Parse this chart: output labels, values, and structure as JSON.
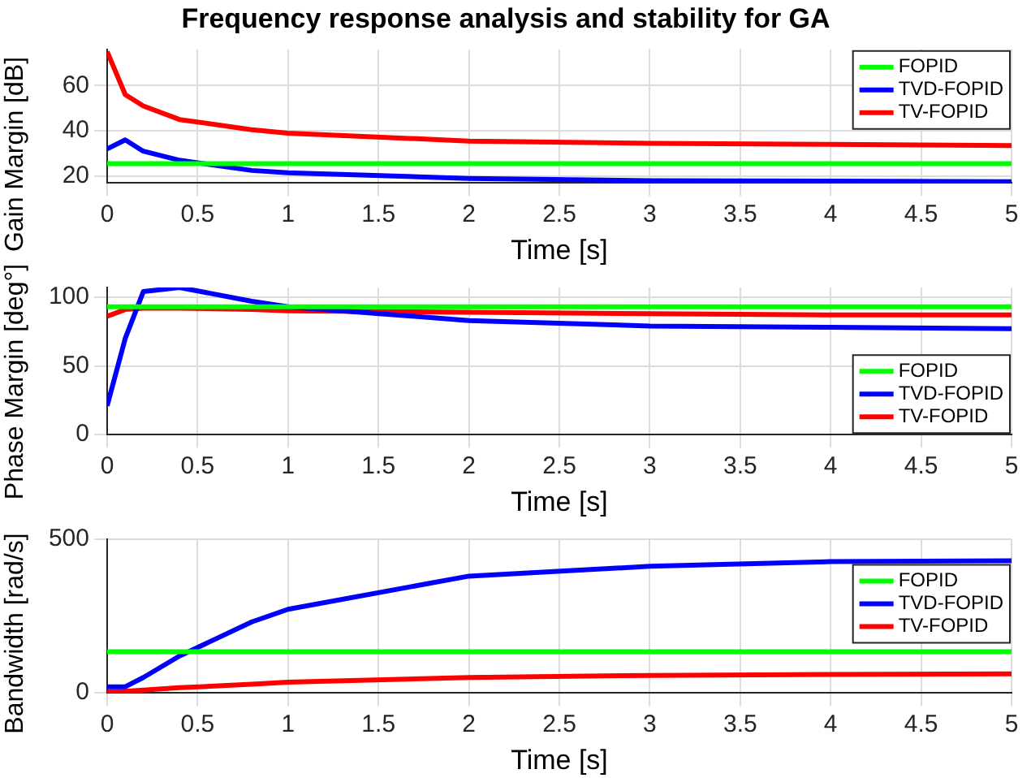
{
  "chart_data": [
    {
      "type": "line",
      "title": "Frequency response analysis and stability for GA",
      "xlabel": "Time [s]",
      "ylabel": "Gain Margin [dB]",
      "x": [
        0,
        0.1,
        0.2,
        0.4,
        0.8,
        1,
        2,
        3,
        4,
        5
      ],
      "xlim": [
        0,
        5
      ],
      "xticks": [
        0,
        0.5,
        1,
        1.5,
        2,
        2.5,
        3,
        3.5,
        4,
        4.5,
        5
      ],
      "ylim": [
        17,
        76
      ],
      "yticks": [
        20,
        40,
        60
      ],
      "grid": true,
      "legend": "top right",
      "series": [
        {
          "name": "FOPID",
          "color": "#00ff00",
          "values": [
            25.5,
            25.5,
            25.5,
            25.5,
            25.5,
            25.5,
            25.5,
            25.5,
            25.5,
            25.5
          ]
        },
        {
          "name": "TVD-FOPID",
          "color": "#0000ff",
          "values": [
            32,
            36,
            31,
            27,
            22.5,
            21.5,
            19,
            18,
            17.8,
            17.5
          ]
        },
        {
          "name": "TV-FOPID",
          "color": "#ff0000",
          "values": [
            75,
            56,
            51,
            45,
            40.5,
            39,
            35.5,
            34.5,
            34,
            33.5
          ]
        }
      ]
    },
    {
      "type": "line",
      "xlabel": "Time [s]",
      "ylabel": "Phase Margin [deg°]",
      "x": [
        0,
        0.1,
        0.2,
        0.4,
        0.8,
        1,
        2,
        3,
        4,
        5
      ],
      "xlim": [
        0,
        5
      ],
      "xticks": [
        0,
        0.5,
        1,
        1.5,
        2,
        2.5,
        3,
        3.5,
        4,
        4.5,
        5
      ],
      "ylim": [
        0,
        107
      ],
      "yticks": [
        0,
        50,
        100
      ],
      "grid": true,
      "legend": "bottom right",
      "series": [
        {
          "name": "FOPID",
          "color": "#00ff00",
          "values": [
            93,
            93,
            93,
            93,
            93,
            93,
            93,
            93,
            93,
            93
          ]
        },
        {
          "name": "TVD-FOPID",
          "color": "#0000ff",
          "values": [
            21,
            70,
            104,
            107,
            97,
            93,
            83,
            79,
            78,
            77
          ]
        },
        {
          "name": "TV-FOPID",
          "color": "#ff0000",
          "values": [
            86,
            91,
            92,
            92,
            91,
            90,
            89,
            88,
            87,
            87
          ]
        }
      ]
    },
    {
      "type": "line",
      "xlabel": "Time [s]",
      "ylabel": "Bandwidth [rad/s]",
      "x": [
        0,
        0.1,
        0.2,
        0.4,
        0.8,
        1,
        2,
        3,
        4,
        5
      ],
      "xlim": [
        0,
        5
      ],
      "xticks": [
        0,
        0.5,
        1,
        1.5,
        2,
        2.5,
        3,
        3.5,
        4,
        4.5,
        5
      ],
      "ylim": [
        0,
        500
      ],
      "yticks": [
        0,
        500
      ],
      "grid": true,
      "legend": "right",
      "series": [
        {
          "name": "FOPID",
          "color": "#00ff00",
          "values": [
            134,
            134,
            134,
            134,
            134,
            134,
            134,
            134,
            134,
            134
          ]
        },
        {
          "name": "TVD-FOPID",
          "color": "#0000ff",
          "values": [
            20,
            20,
            50,
            120,
            231,
            272,
            380,
            412,
            427,
            430
          ]
        },
        {
          "name": "TV-FOPID",
          "color": "#ff0000",
          "values": [
            3,
            5,
            9,
            17,
            28,
            35,
            50,
            57,
            60,
            62
          ]
        }
      ]
    }
  ]
}
